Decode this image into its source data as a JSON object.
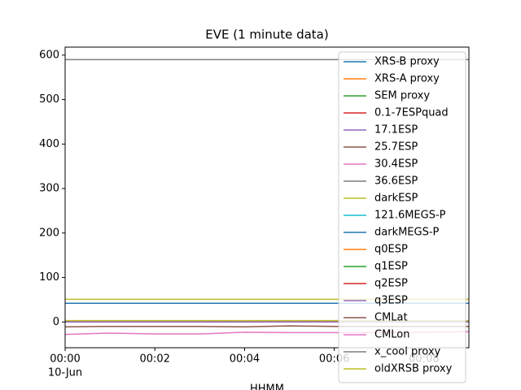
{
  "chart_data": {
    "type": "line",
    "title": "EVE (1 minute data)",
    "xlabel": "HHMM",
    "x": [
      0,
      1,
      2,
      3,
      4,
      5,
      6,
      7,
      8,
      9
    ],
    "xlim": [
      0,
      9
    ],
    "xticks": [
      {
        "value": 0,
        "label": "00:00"
      },
      {
        "value": 2,
        "label": "00:02"
      },
      {
        "value": 4,
        "label": "00:04"
      },
      {
        "value": 6,
        "label": "00:06"
      },
      {
        "value": 8,
        "label": "00:08"
      }
    ],
    "xtick_sublabel": "10-Jun",
    "ylim": [
      -58,
      618
    ],
    "yticks": [
      0,
      100,
      200,
      300,
      400,
      500,
      600
    ],
    "legend": "upper right",
    "series": [
      {
        "name": "XRS-B proxy",
        "color": "#1f77b4",
        "values": [
          0,
          0,
          0,
          0,
          0,
          0,
          0,
          0,
          0,
          0
        ]
      },
      {
        "name": "XRS-A proxy",
        "color": "#ff7f0e",
        "values": [
          0,
          0,
          0,
          0,
          0,
          0,
          0,
          0,
          0,
          0
        ]
      },
      {
        "name": "SEM proxy",
        "color": "#2ca02c",
        "values": [
          1,
          1,
          1,
          1,
          1,
          1,
          1,
          1,
          1,
          1
        ]
      },
      {
        "name": "0.1-7ESPquad",
        "color": "#d62728",
        "values": [
          0,
          0,
          0,
          0,
          0,
          0,
          0,
          0,
          0,
          0
        ]
      },
      {
        "name": "17.1ESP",
        "color": "#9467bd",
        "values": [
          1,
          1,
          1,
          1,
          1,
          1,
          1,
          1,
          1,
          1
        ]
      },
      {
        "name": "25.7ESP",
        "color": "#8c564b",
        "values": [
          0,
          0,
          0,
          0,
          0,
          0,
          0,
          0,
          0,
          0
        ]
      },
      {
        "name": "30.4ESP",
        "color": "#e377c2",
        "values": [
          1,
          1,
          1,
          1,
          1,
          1,
          1,
          1,
          1,
          1
        ]
      },
      {
        "name": "36.6ESP",
        "color": "#7f7f7f",
        "values": [
          0,
          0,
          0,
          0,
          0,
          0,
          0,
          0,
          0,
          0
        ]
      },
      {
        "name": "darkESP",
        "color": "#bcbd22",
        "values": [
          3,
          3,
          3,
          3,
          3,
          3,
          3,
          3,
          3,
          3
        ]
      },
      {
        "name": "121.6MEGS-P",
        "color": "#17becf",
        "values": [
          42,
          42,
          42,
          42,
          42,
          42,
          42,
          42,
          42,
          42
        ]
      },
      {
        "name": "darkMEGS-P",
        "color": "#1f77b4",
        "values": [
          42,
          42,
          42,
          42,
          42,
          42,
          42,
          42,
          42,
          42
        ]
      },
      {
        "name": "q0ESP",
        "color": "#ff7f0e",
        "values": [
          0,
          0,
          0,
          0,
          0,
          0,
          0,
          0,
          0,
          0
        ]
      },
      {
        "name": "q1ESP",
        "color": "#2ca02c",
        "values": [
          0,
          0,
          0,
          0,
          0,
          0,
          0,
          0,
          0,
          0
        ]
      },
      {
        "name": "q2ESP",
        "color": "#d62728",
        "values": [
          0,
          0,
          0,
          0,
          0,
          0,
          0,
          0,
          0,
          0
        ]
      },
      {
        "name": "q3ESP",
        "color": "#9467bd",
        "values": [
          0,
          0,
          0,
          0,
          0,
          0,
          0,
          0,
          0,
          0
        ]
      },
      {
        "name": "CMLat",
        "color": "#8c564b",
        "values": [
          -11,
          -10,
          -10,
          -10,
          -11,
          -9,
          -10,
          -10,
          -10,
          -10
        ]
      },
      {
        "name": "CMLon",
        "color": "#e377c2",
        "values": [
          -28,
          -25,
          -27,
          -27,
          -23,
          -24,
          -24,
          -24,
          -23,
          -22
        ]
      },
      {
        "name": "x_cool proxy",
        "color": "#7f7f7f",
        "values": [
          590,
          590,
          590,
          590,
          590,
          590,
          590,
          590,
          590,
          590
        ]
      },
      {
        "name": "oldXRSB proxy",
        "color": "#bcbd22",
        "values": [
          51,
          51,
          51,
          51,
          51,
          51,
          51,
          51,
          51,
          51
        ]
      }
    ]
  }
}
